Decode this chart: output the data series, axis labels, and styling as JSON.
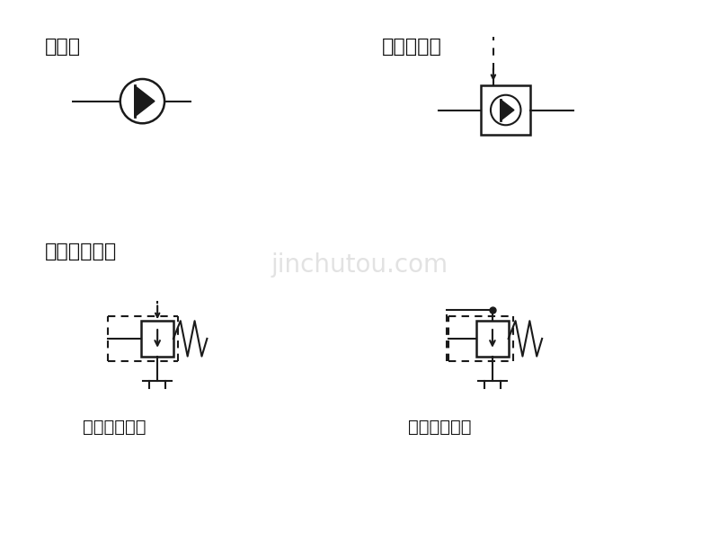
{
  "bg_color": "#ffffff",
  "text_color": "#111111",
  "label_danxiang": "单向阀",
  "label_yekong": "液控单向阀",
  "label_zhidong": "直动型溢流阀",
  "label_neib": "内部压力控制",
  "label_waib": "外部压力控制",
  "font_size_label": 16,
  "font_size_sub": 14,
  "line_color": "#1a1a1a",
  "line_width": 1.5,
  "watermark": "jinchutou.com"
}
